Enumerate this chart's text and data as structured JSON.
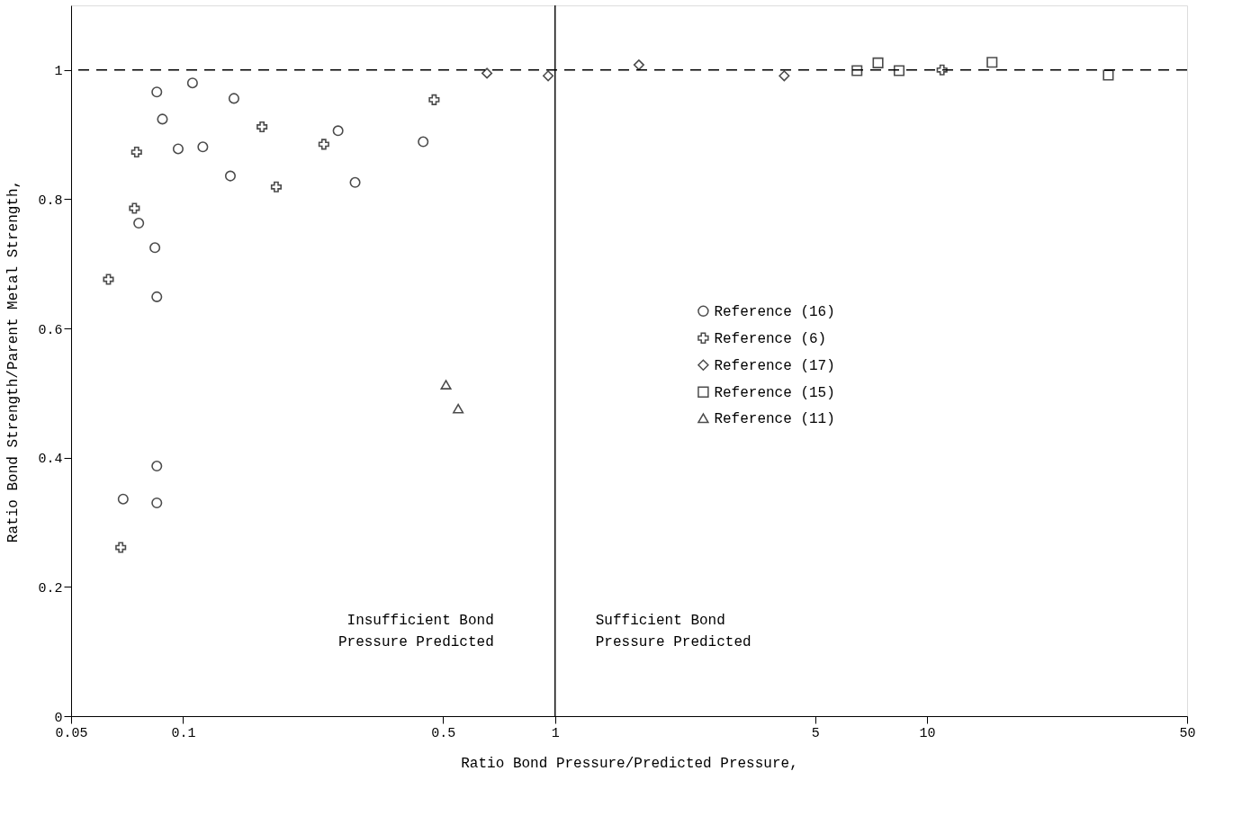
{
  "chart_data": {
    "type": "scatter",
    "xlabel": "Ratio Bond Pressure/Predicted Pressure,",
    "ylabel": "Ratio Bond Strength/Parent Metal Strength,",
    "log": "x",
    "xlim": [
      0.05,
      50
    ],
    "xticks": [
      0.05,
      0.1,
      0.5,
      1,
      5,
      10,
      50
    ],
    "ylim": [
      0,
      1.1
    ],
    "yticks": [
      0,
      0.2,
      0.4,
      0.6,
      0.8,
      1
    ],
    "grid": false,
    "legend": "right",
    "series": [
      {
        "name": "Reference (16)",
        "color": "#000000",
        "marker": "circle",
        "x": [
          0.069,
          0.076,
          0.084,
          0.085,
          0.085,
          0.085,
          0.085,
          0.088,
          0.097,
          0.106,
          0.113,
          0.134,
          0.137,
          0.261,
          0.29,
          0.442
        ],
        "values": [
          0.336,
          0.763,
          0.725,
          0.966,
          0.649,
          0.387,
          0.33,
          0.924,
          0.878,
          0.98,
          0.881,
          0.836,
          0.956,
          0.906,
          0.826,
          0.889
        ]
      },
      {
        "name": "Reference (6)",
        "color": "#000000",
        "marker": "cross",
        "x": [
          0.063,
          0.068,
          0.074,
          0.075,
          0.163,
          0.178,
          0.239,
          0.473,
          10.97
        ],
        "values": [
          0.676,
          0.261,
          0.786,
          0.873,
          0.912,
          0.819,
          0.885,
          0.954,
          1.0
        ]
      },
      {
        "name": "Reference (17)",
        "color": "#000000",
        "marker": "diamond",
        "x": [
          0.656,
          0.958,
          1.68,
          4.13
        ],
        "values": [
          0.995,
          0.991,
          1.008,
          0.991
        ]
      },
      {
        "name": "Reference (15)",
        "color": "#000000",
        "marker": "square",
        "x": [
          6.48,
          7.38,
          8.41,
          14.95,
          30.7
        ],
        "values": [
          0.999,
          1.011,
          0.999,
          1.012,
          0.992
        ]
      },
      {
        "name": "Reference (11)",
        "color": "#000000",
        "marker": "triangle",
        "x": [
          0.509,
          0.549
        ],
        "values": [
          0.513,
          0.476
        ]
      }
    ],
    "ref_lines": [
      {
        "axis": "y",
        "value": 1,
        "line_style": "dashed",
        "color": "#000000"
      },
      {
        "axis": "x",
        "value": 1,
        "line_style": "solid",
        "color": "#000000"
      }
    ],
    "annotations": [
      "Insufficient Bond\nPressure Predicted",
      "Sufficient Bond\nPressure Predicted"
    ]
  }
}
